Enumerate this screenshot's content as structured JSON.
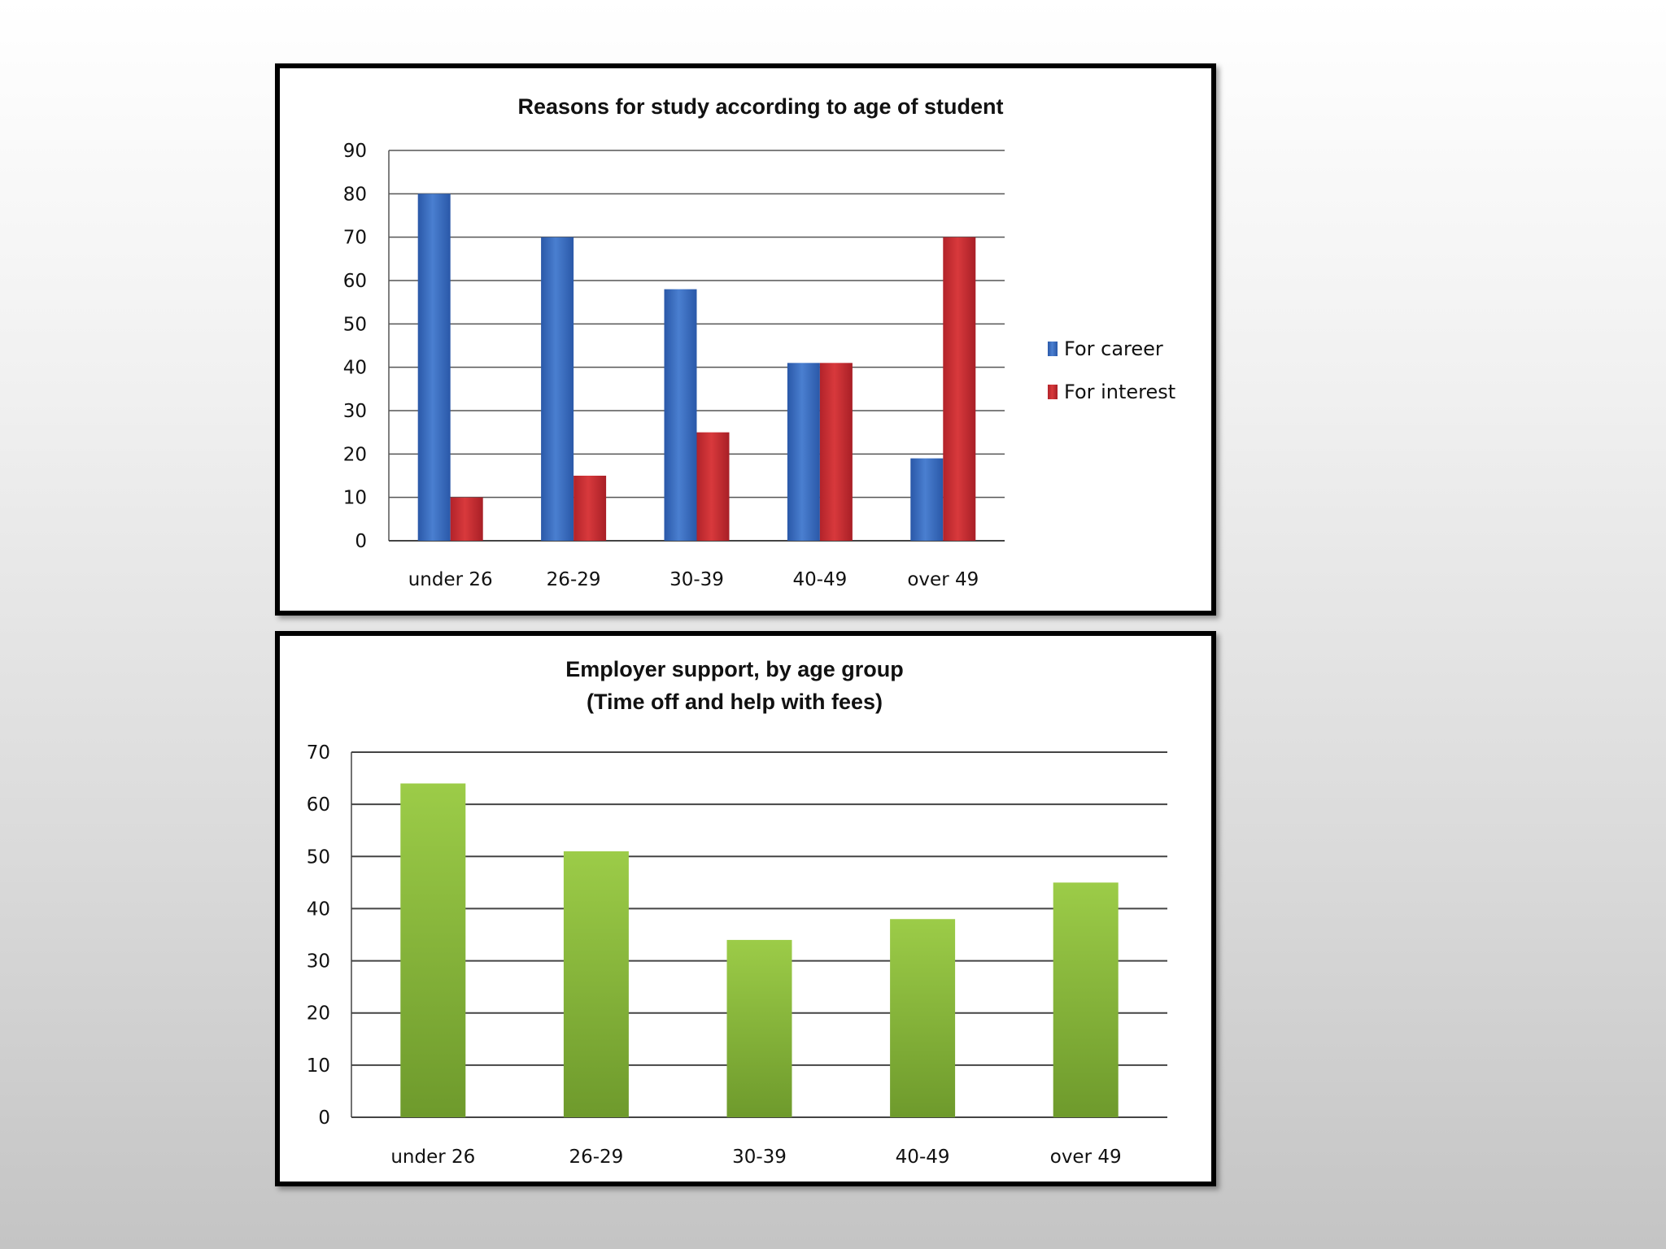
{
  "chart_data": [
    {
      "type": "bar",
      "title": "Reasons  for study according to age of student",
      "categories": [
        "under 26",
        "26-29",
        "30-39",
        "40-49",
        "over 49"
      ],
      "series": [
        {
          "name": "For career",
          "values": [
            80,
            70,
            58,
            41,
            19
          ],
          "color": "#3565b5"
        },
        {
          "name": "For interest",
          "values": [
            10,
            15,
            25,
            41,
            70
          ],
          "color": "#c0282d"
        }
      ],
      "ylim": [
        0,
        90
      ],
      "yticks": [
        0,
        10,
        20,
        30,
        40,
        50,
        60,
        70,
        80,
        90
      ],
      "grid": true,
      "legend": "right"
    },
    {
      "type": "bar",
      "title": "Employer support, by age group",
      "subtitle": "(Time off and help with fees)",
      "categories": [
        "under 26",
        "26-29",
        "30-39",
        "40-49",
        "over 49"
      ],
      "values": [
        64,
        51,
        34,
        38,
        45
      ],
      "color": "#8db83c",
      "ylim": [
        0,
        70
      ],
      "yticks": [
        0,
        10,
        20,
        30,
        40,
        50,
        60,
        70
      ],
      "grid": true
    }
  ]
}
